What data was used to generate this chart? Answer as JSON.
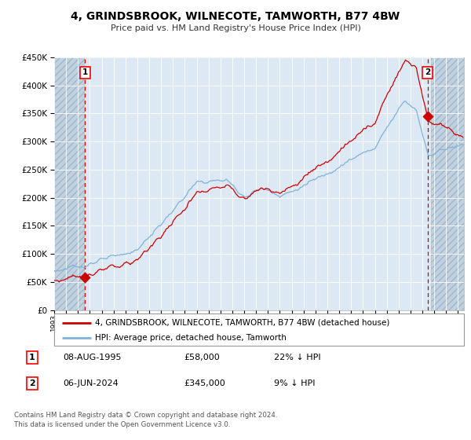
{
  "title": "4, GRINDSBROOK, WILNECOTE, TAMWORTH, B77 4BW",
  "subtitle": "Price paid vs. HM Land Registry's House Price Index (HPI)",
  "hpi_label": "HPI: Average price, detached house, Tamworth",
  "property_label": "4, GRINDSBROOK, WILNECOTE, TAMWORTH, B77 4BW (detached house)",
  "sale1_date": "08-AUG-1995",
  "sale1_price": "£58,000",
  "sale1_hpi": "22% ↓ HPI",
  "sale1_value": 58000,
  "sale1_year": 1995.6,
  "sale2_date": "06-JUN-2024",
  "sale2_price": "£345,000",
  "sale2_hpi": "9% ↓ HPI",
  "sale2_value": 345000,
  "sale2_year": 2024.44,
  "footnote1": "Contains HM Land Registry data © Crown copyright and database right 2024.",
  "footnote2": "This data is licensed under the Open Government Licence v3.0.",
  "ylim": [
    0,
    450000
  ],
  "xlim_start": 1993.0,
  "xlim_end": 2027.5,
  "hatch_left_end": 1995.5,
  "hatch_right_start": 2024.75,
  "bg_color": "#dde8f5",
  "hpi_color": "#7fb3d9",
  "property_color": "#cc0000",
  "grid_color": "#c5d5e8",
  "hatch_color": "#c2d1e0"
}
